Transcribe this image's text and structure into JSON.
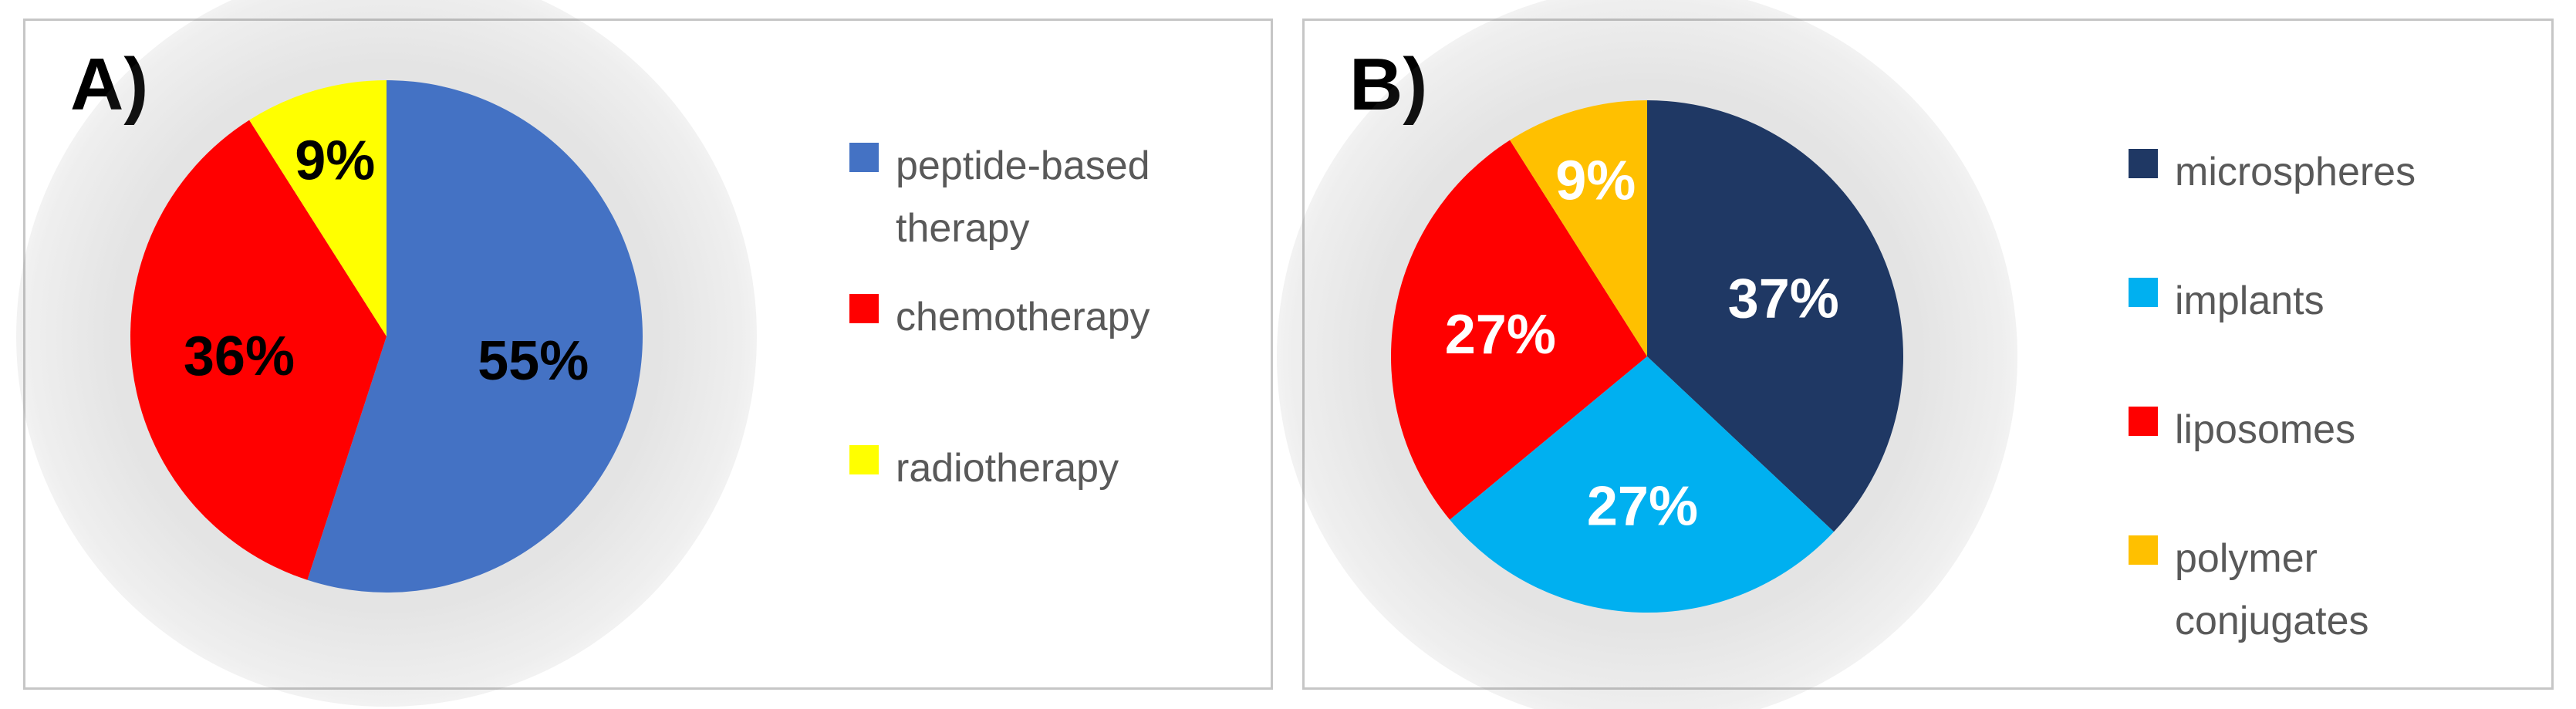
{
  "figure": {
    "background_color": "#ffffff",
    "panel_border_color": "#c6c6c6",
    "legend_text_color": "#595959"
  },
  "chart_data": [
    {
      "type": "pie",
      "title": "A)",
      "categories": [
        "peptide-based therapy",
        "chemotherapy",
        "radiotherapy"
      ],
      "values": [
        55,
        36,
        9
      ],
      "labels": [
        "55%",
        "36%",
        "9%"
      ],
      "colors": [
        "#4472C4",
        "#FF0000",
        "#FFFF00"
      ],
      "label_colors": [
        "#000000",
        "#000000",
        "#000000"
      ],
      "legend_position": "right",
      "legend_marker": "square",
      "start_angle_deg": 0,
      "clockwise": true,
      "grid": false
    },
    {
      "type": "pie",
      "title": "B)",
      "categories": [
        "microspheres",
        "implants",
        "liposomes",
        "polymer conjugates"
      ],
      "values": [
        37,
        27,
        27,
        9
      ],
      "labels": [
        "37%",
        "27%",
        "27%",
        "9%"
      ],
      "colors": [
        "#1F3864",
        "#00B0F0",
        "#FF0000",
        "#FFC000"
      ],
      "label_colors": [
        "#FFFFFF",
        "#FFFFFF",
        "#FFFFFF",
        "#FFFFFF"
      ],
      "legend_position": "right",
      "legend_marker": "square",
      "start_angle_deg": 0,
      "clockwise": true,
      "grid": false
    }
  ]
}
